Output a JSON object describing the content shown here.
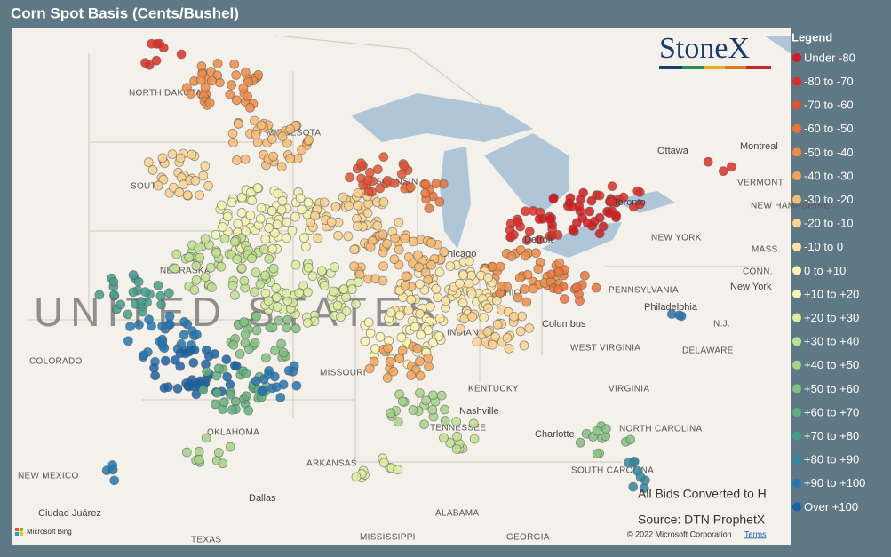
{
  "header": {
    "title": "Corn Spot Basis (Cents/Bushel)"
  },
  "logo": "StoneX",
  "legend": {
    "title": "Legend",
    "items": [
      {
        "label": "Under -80",
        "color": "#d7191c"
      },
      {
        "label": "-80 to -70",
        "color": "#de2d26"
      },
      {
        "label": "-70 to -60",
        "color": "#e6502e"
      },
      {
        "label": "-60 to -50",
        "color": "#ec7338"
      },
      {
        "label": "-50 to -40",
        "color": "#f08b45"
      },
      {
        "label": "-40 to -30",
        "color": "#f4a256"
      },
      {
        "label": "-30 to -20",
        "color": "#f8bb72"
      },
      {
        "label": "-20 to -10",
        "color": "#fad28e"
      },
      {
        "label": "-10 to 0",
        "color": "#fce5a4"
      },
      {
        "label": "0 to +10",
        "color": "#fdf3b2"
      },
      {
        "label": "+10 to +20",
        "color": "#f1f5b0"
      },
      {
        "label": "+20 to +30",
        "color": "#dbed9f"
      },
      {
        "label": "+30 to +40",
        "color": "#bfe08e"
      },
      {
        "label": "+40 to +50",
        "color": "#a3d385"
      },
      {
        "label": "+50 to +60",
        "color": "#81c27e"
      },
      {
        "label": "+60 to +70",
        "color": "#60b07d"
      },
      {
        "label": "+70 to +80",
        "color": "#429d8b"
      },
      {
        "label": "+80 to +90",
        "color": "#2e8aa3"
      },
      {
        "label": "+90 to +100",
        "color": "#2177b4"
      },
      {
        "label": "Over +100",
        "color": "#1763a8"
      }
    ]
  },
  "places": [
    "NORTH DAKOTA",
    "SOUTH",
    "MINNESOTA",
    "WISCONSIN",
    "Chicago",
    "NEBRASKA",
    "COLORADO",
    "MISSOURI",
    "INDIANA",
    "OHIO",
    "Columbus",
    "PENNSYLVANIA",
    "Philadelphia",
    "NEW YORK",
    "New York",
    "Ottawa",
    "Montreal",
    "VERMONT",
    "NEW HAMPSHIRE",
    "MASS.",
    "CONN.",
    "N.J.",
    "DELAWARE",
    "WEST VIRGINIA",
    "VIRGINIA",
    "KENTUCKY",
    "Nashville",
    "TENNESSEE",
    "OKLAHOMA",
    "ARKANSAS",
    "NORTH CAROLINA",
    "SOUTH CAROLINA",
    "Charlotte",
    "ALABAMA",
    "MISSISSIPPI",
    "GEORGIA",
    "TEXAS",
    "Dallas",
    "NEW MEXICO",
    "Ciudad Juárez",
    "UNITED STATES",
    "Toronto",
    "Detroit"
  ],
  "notes": [
    "All Bids Converted to H",
    "Source: DTN ProphetX",
    "© 2022 Microsoft Corporation",
    "Terms",
    "Microsoft Bing"
  ],
  "clusters": [
    {
      "lon": -101.6,
      "lat": 48.9,
      "range": 1,
      "count": 8
    },
    {
      "lon": -98.6,
      "lat": 47.7,
      "range": 4,
      "count": 40
    },
    {
      "lon": -96.6,
      "lat": 45.8,
      "range": 6,
      "count": 40
    },
    {
      "lon": -100.7,
      "lat": 44.6,
      "range": 7,
      "count": 30
    },
    {
      "lon": -96.6,
      "lat": 43.0,
      "range": 10,
      "count": 80
    },
    {
      "lon": -92.4,
      "lat": 43.0,
      "range": 7,
      "count": 50
    },
    {
      "lon": -91.1,
      "lat": 44.6,
      "range": 2,
      "count": 25
    },
    {
      "lon": -89.0,
      "lat": 43.9,
      "range": 3,
      "count": 12
    },
    {
      "lon": -84.0,
      "lat": 42.7,
      "range": 1,
      "count": 20
    },
    {
      "lon": -81.9,
      "lat": 43.3,
      "range": 0,
      "count": 35
    },
    {
      "lon": -79.9,
      "lat": 43.8,
      "range": 1,
      "count": 10
    },
    {
      "lon": -84.5,
      "lat": 41.1,
      "range": 4,
      "count": 40
    },
    {
      "lon": -82.4,
      "lat": 40.8,
      "range": 3,
      "count": 15
    },
    {
      "lon": -88.2,
      "lat": 40.5,
      "range": 8,
      "count": 80
    },
    {
      "lon": -90.3,
      "lat": 41.7,
      "range": 6,
      "count": 50
    },
    {
      "lon": -94.5,
      "lat": 40.5,
      "range": 11,
      "count": 60
    },
    {
      "lon": -98.6,
      "lat": 41.4,
      "range": 12,
      "count": 60
    },
    {
      "lon": -102.8,
      "lat": 40.5,
      "range": 16,
      "count": 25
    },
    {
      "lon": -101.6,
      "lat": 38.9,
      "range": 18,
      "count": 30
    },
    {
      "lon": -99.9,
      "lat": 37.7,
      "range": 19,
      "count": 40
    },
    {
      "lon": -98.2,
      "lat": 37.1,
      "range": 15,
      "count": 30
    },
    {
      "lon": -95.7,
      "lat": 37.4,
      "range": 18,
      "count": 15
    },
    {
      "lon": -96.6,
      "lat": 38.9,
      "range": 14,
      "count": 30
    },
    {
      "lon": -90.3,
      "lat": 38.9,
      "range": 9,
      "count": 40
    },
    {
      "lon": -90.3,
      "lat": 38.0,
      "range": 5,
      "count": 20
    },
    {
      "lon": -89.4,
      "lat": 36.4,
      "range": 13,
      "count": 20
    },
    {
      "lon": -87.4,
      "lat": 35.5,
      "range": 12,
      "count": 10
    },
    {
      "lon": -91.5,
      "lat": 34.2,
      "range": 11,
      "count": 10
    },
    {
      "lon": -80.7,
      "lat": 35.3,
      "range": 14,
      "count": 12
    },
    {
      "lon": -79.1,
      "lat": 34.1,
      "range": 17,
      "count": 8
    },
    {
      "lon": -77.0,
      "lat": 40.0,
      "range": 18,
      "count": 3
    },
    {
      "lon": -104.1,
      "lat": 34.2,
      "range": 18,
      "count": 4
    },
    {
      "lon": -99.3,
      "lat": 34.9,
      "range": 13,
      "count": 10
    },
    {
      "lon": -85.7,
      "lat": 39.2,
      "range": 7,
      "count": 30
    },
    {
      "lon": -75.3,
      "lat": 44.9,
      "range": 1,
      "count": 3
    }
  ]
}
